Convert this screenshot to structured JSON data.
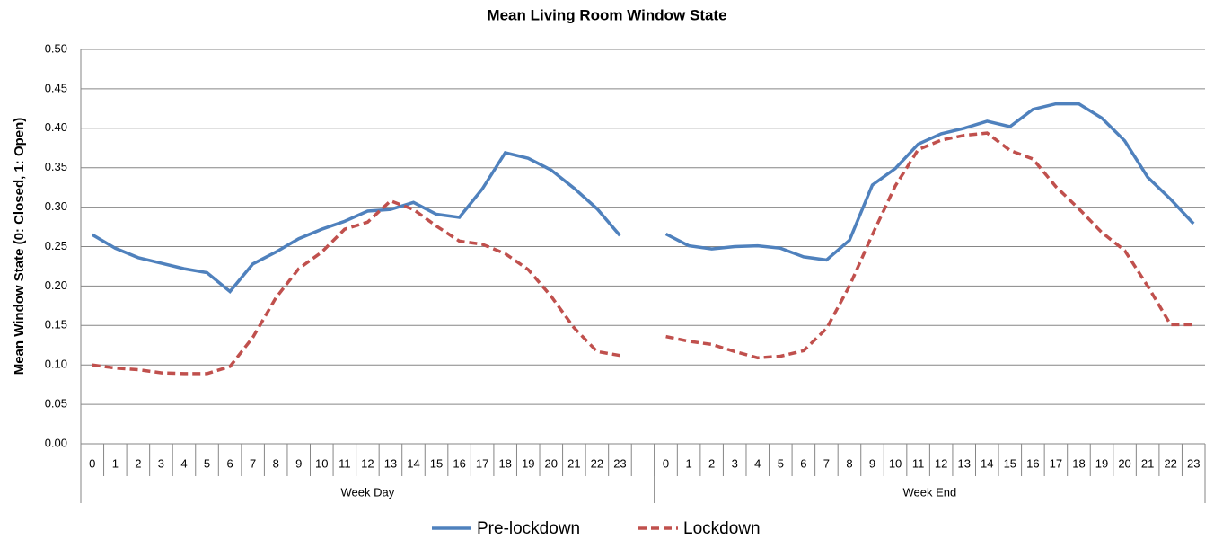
{
  "chart_data": {
    "type": "line",
    "title": "Mean Living Room Window State",
    "y_label": "Mean Window State (0: Closed, 1: Open)",
    "groups": [
      {
        "label": "Week Day",
        "categories": [
          "0",
          "1",
          "2",
          "3",
          "4",
          "5",
          "6",
          "7",
          "8",
          "9",
          "10",
          "11",
          "12",
          "13",
          "14",
          "15",
          "16",
          "17",
          "18",
          "19",
          "20",
          "21",
          "22",
          "23",
          null
        ]
      },
      {
        "label": "Week End",
        "categories": [
          "0",
          "1",
          "2",
          "3",
          "4",
          "5",
          "6",
          "7",
          "8",
          "9",
          "10",
          "11",
          "12",
          "13",
          "14",
          "15",
          "16",
          "17",
          "18",
          "19",
          "20",
          "21",
          "22",
          "23"
        ]
      }
    ],
    "series": [
      {
        "name": "Pre-lockdown",
        "color": "#4f81bd",
        "dashed": false,
        "values": [
          0.265,
          0.248,
          0.236,
          0.229,
          0.222,
          0.217,
          0.193,
          0.228,
          0.243,
          0.26,
          0.272,
          0.282,
          0.295,
          0.297,
          0.306,
          0.291,
          0.287,
          0.323,
          0.369,
          0.362,
          0.347,
          0.324,
          0.298,
          0.264,
          null,
          0.266,
          0.251,
          0.247,
          0.25,
          0.251,
          0.248,
          0.237,
          0.233,
          0.258,
          0.328,
          0.349,
          0.38,
          0.393,
          0.4,
          0.409,
          0.402,
          0.424,
          0.431,
          0.431,
          0.413,
          0.384,
          0.338,
          0.31,
          0.279
        ]
      },
      {
        "name": "Lockdown",
        "color": "#c0504d",
        "dashed": true,
        "values": [
          0.1,
          0.096,
          0.094,
          0.09,
          0.089,
          0.089,
          0.098,
          0.135,
          0.185,
          0.222,
          0.243,
          0.272,
          0.281,
          0.308,
          0.297,
          0.276,
          0.257,
          0.253,
          0.241,
          0.221,
          0.187,
          0.147,
          0.117,
          0.112,
          null,
          0.136,
          0.13,
          0.126,
          0.117,
          0.109,
          0.111,
          0.118,
          0.146,
          0.2,
          0.265,
          0.327,
          0.373,
          0.385,
          0.391,
          0.394,
          0.372,
          0.361,
          0.326,
          0.298,
          0.268,
          0.245,
          0.2,
          0.151,
          0.151
        ]
      }
    ],
    "ylim": [
      0,
      0.5
    ],
    "yticks": [
      {
        "value": 0,
        "label": "0.00"
      },
      {
        "value": 0.05,
        "label": "0.05"
      },
      {
        "value": 0.1,
        "label": "0.10"
      },
      {
        "value": 0.15,
        "label": "0.15"
      },
      {
        "value": 0.2,
        "label": "0.20"
      },
      {
        "value": 0.25,
        "label": "0.25"
      },
      {
        "value": 0.3,
        "label": "0.30"
      },
      {
        "value": 0.35,
        "label": "0.35"
      },
      {
        "value": 0.4,
        "label": "0.40"
      },
      {
        "value": 0.45,
        "label": "0.45"
      },
      {
        "value": 0.5,
        "label": "0.50"
      }
    ],
    "grid": true,
    "legend": "bottom"
  }
}
